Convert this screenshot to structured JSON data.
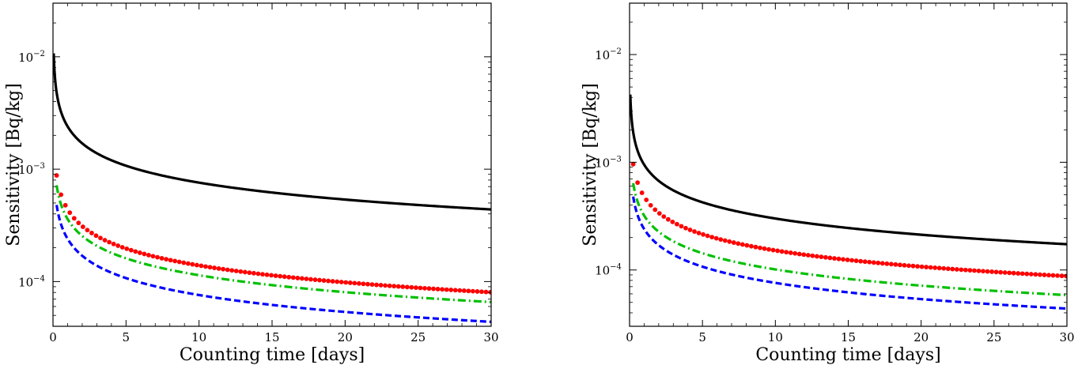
{
  "chart_data": [
    {
      "type": "line",
      "panel": "left",
      "xlabel": "Counting time [days]",
      "ylabel": "Sensitivity [Bq/kg]",
      "xlim": [
        0,
        30
      ],
      "ylim": [
        4e-05,
        0.03
      ],
      "yscale": "log",
      "xticks": [
        "0",
        "5",
        "10",
        "15",
        "20",
        "25",
        "30"
      ],
      "yticks": [
        {
          "value": 0.01,
          "base": "10",
          "exp": "−2"
        },
        {
          "value": 0.001,
          "base": "10",
          "exp": "−3"
        },
        {
          "value": 0.0001,
          "base": "10",
          "exp": "−4"
        }
      ],
      "series": [
        {
          "name": "black-solid",
          "color": "#000000",
          "style": "solid",
          "coef": 0.0024,
          "power": 0.5
        },
        {
          "name": "red-dotted",
          "color": "#ff0000",
          "style": "dots",
          "coef": 0.00044,
          "power": 0.5
        },
        {
          "name": "green-dashdot",
          "color": "#00c000",
          "style": "dashdot",
          "coef": 0.00036,
          "power": 0.5
        },
        {
          "name": "blue-dashed",
          "color": "#0000ff",
          "style": "dashed",
          "coef": 0.00024,
          "power": 0.5
        }
      ]
    },
    {
      "type": "line",
      "panel": "right",
      "xlabel": "Counting time [days]",
      "ylabel": "Sensitivity [Bq/kg]",
      "xlim": [
        0,
        30
      ],
      "ylim": [
        3e-05,
        0.03
      ],
      "yscale": "log",
      "xticks": [
        "0",
        "5",
        "10",
        "15",
        "20",
        "25",
        "30"
      ],
      "yticks": [
        {
          "value": 0.01,
          "base": "10",
          "exp": "−2"
        },
        {
          "value": 0.001,
          "base": "10",
          "exp": "−3"
        },
        {
          "value": 0.0001,
          "base": "10",
          "exp": "−4"
        }
      ],
      "series": [
        {
          "name": "black-solid",
          "color": "#000000",
          "style": "solid",
          "coef": 0.00095,
          "power": 0.5
        },
        {
          "name": "red-dotted",
          "color": "#ff0000",
          "style": "dots",
          "coef": 0.00048,
          "power": 0.5
        },
        {
          "name": "green-dashdot",
          "color": "#00c000",
          "style": "dashdot",
          "coef": 0.00032,
          "power": 0.5
        },
        {
          "name": "blue-dashed",
          "color": "#0000ff",
          "style": "dashed",
          "coef": 0.00024,
          "power": 0.5
        }
      ]
    }
  ]
}
